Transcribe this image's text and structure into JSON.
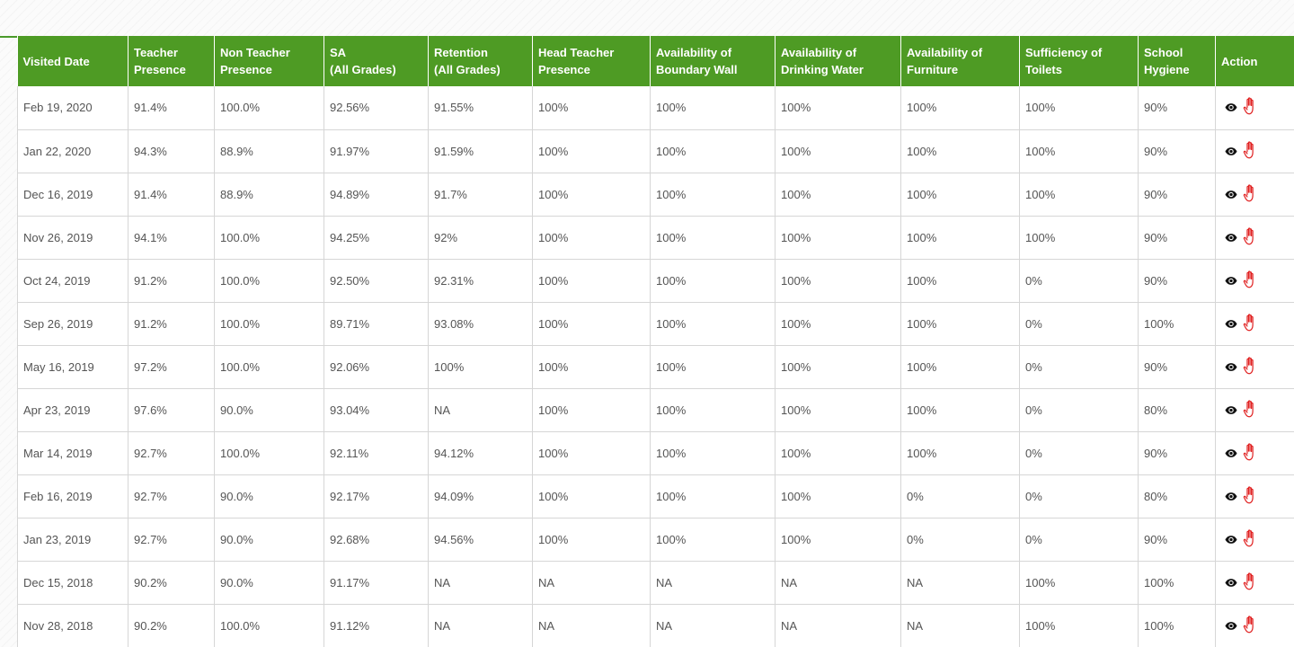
{
  "table": {
    "columns": [
      "Visited Date",
      "Teacher\nPresence",
      "Non Teacher\nPresence",
      "SA\n(All Grades)",
      "Retention\n(All Grades)",
      "Head Teacher\nPresence",
      "Availability of\nBoundary Wall",
      "Availability of\nDrinking Water",
      "Availability of\nFurniture",
      "Sufficiency of\nToilets",
      "School\nHygiene",
      "Action"
    ],
    "rows": [
      [
        "Feb 19, 2020",
        "91.4%",
        "100.0%",
        "92.56%",
        "91.55%",
        "100%",
        "100%",
        "100%",
        "100%",
        "100%",
        "90%"
      ],
      [
        "Jan 22, 2020",
        "94.3%",
        "88.9%",
        "91.97%",
        "91.59%",
        "100%",
        "100%",
        "100%",
        "100%",
        "100%",
        "90%"
      ],
      [
        "Dec 16, 2019",
        "91.4%",
        "88.9%",
        "94.89%",
        "91.7%",
        "100%",
        "100%",
        "100%",
        "100%",
        "100%",
        "90%"
      ],
      [
        "Nov 26, 2019",
        "94.1%",
        "100.0%",
        "94.25%",
        "92%",
        "100%",
        "100%",
        "100%",
        "100%",
        "100%",
        "90%"
      ],
      [
        "Oct 24, 2019",
        "91.2%",
        "100.0%",
        "92.50%",
        "92.31%",
        "100%",
        "100%",
        "100%",
        "100%",
        "0%",
        "90%"
      ],
      [
        "Sep 26, 2019",
        "91.2%",
        "100.0%",
        "89.71%",
        "93.08%",
        "100%",
        "100%",
        "100%",
        "100%",
        "0%",
        "100%"
      ],
      [
        "May 16, 2019",
        "97.2%",
        "100.0%",
        "92.06%",
        "100%",
        "100%",
        "100%",
        "100%",
        "100%",
        "0%",
        "90%"
      ],
      [
        "Apr 23, 2019",
        "97.6%",
        "90.0%",
        "93.04%",
        "NA",
        "100%",
        "100%",
        "100%",
        "100%",
        "0%",
        "80%"
      ],
      [
        "Mar 14, 2019",
        "92.7%",
        "100.0%",
        "92.11%",
        "94.12%",
        "100%",
        "100%",
        "100%",
        "100%",
        "0%",
        "90%"
      ],
      [
        "Feb 16, 2019",
        "92.7%",
        "90.0%",
        "92.17%",
        "94.09%",
        "100%",
        "100%",
        "100%",
        "0%",
        "0%",
        "80%"
      ],
      [
        "Jan 23, 2019",
        "92.7%",
        "90.0%",
        "92.68%",
        "94.56%",
        "100%",
        "100%",
        "100%",
        "0%",
        "0%",
        "90%"
      ],
      [
        "Dec 15, 2018",
        "90.2%",
        "90.0%",
        "91.17%",
        "NA",
        "NA",
        "NA",
        "NA",
        "NA",
        "100%",
        "100%"
      ],
      [
        "Nov 28, 2018",
        "90.2%",
        "100.0%",
        "91.12%",
        "NA",
        "NA",
        "NA",
        "NA",
        "NA",
        "100%",
        "100%"
      ]
    ],
    "actions": [
      {
        "icon": "eye-icon",
        "color": "#111111"
      },
      {
        "icon": "hand-stop-icon",
        "color": "#e02020"
      }
    ]
  },
  "colors": {
    "header_bg": "#4e9b24",
    "header_text": "#ffffff",
    "cell_text": "#555555",
    "border": "#d6d6d6"
  }
}
